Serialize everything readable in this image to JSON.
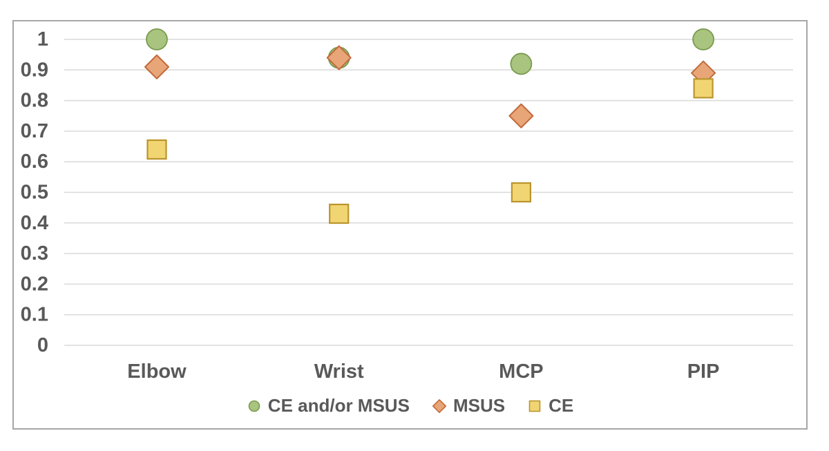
{
  "chart_data": {
    "type": "scatter",
    "title": "",
    "categories": [
      "Elbow",
      "Wrist",
      "MCP",
      "PIP"
    ],
    "series": [
      {
        "name": "CE and/or MSUS",
        "marker": "circle",
        "fill": "#a8c47f",
        "stroke": "#7a9a4e",
        "values": [
          1.0,
          0.94,
          0.92,
          1.0
        ]
      },
      {
        "name": "MSUS",
        "marker": "diamond",
        "fill": "#e8a678",
        "stroke": "#c2693c",
        "values": [
          0.91,
          0.94,
          0.75,
          0.89
        ]
      },
      {
        "name": "CE",
        "marker": "square",
        "fill": "#f2d573",
        "stroke": "#ba942c",
        "values": [
          0.64,
          0.43,
          0.5,
          0.84
        ]
      }
    ],
    "y_axis": {
      "min": 0,
      "max": 1,
      "step": 0.1,
      "tick_labels": [
        "0",
        "0.1",
        "0.2",
        "0.3",
        "0.4",
        "0.5",
        "0.6",
        "0.7",
        "0.8",
        "0.9",
        "1"
      ]
    },
    "x_axis": {
      "label": ""
    },
    "grid": "horizontal",
    "legend_position": "bottom-center",
    "colors": {
      "text": "#595959",
      "gridline": "#d9d9d9",
      "frame": "#a6a6a6",
      "background": "#ffffff"
    }
  }
}
